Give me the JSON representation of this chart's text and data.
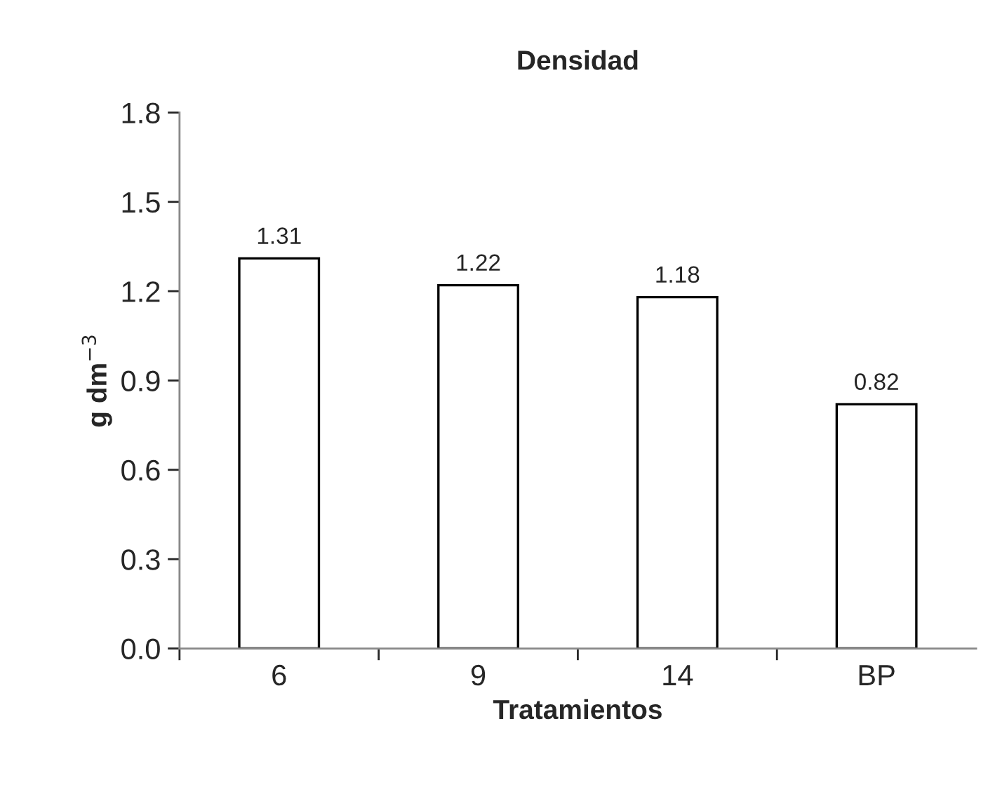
{
  "chart_data": {
    "type": "bar",
    "title": "Densidad",
    "xlabel": "Tratamientos",
    "ylabel": "g dm$^{−3}$",
    "categories": [
      "6",
      "9",
      "14",
      "BP"
    ],
    "values": [
      1.31,
      1.22,
      1.18,
      0.82
    ],
    "color": "#ffffff",
    "ylim": [
      0,
      1.8
    ],
    "yticks": [
      {
        "value": 0,
        "label": "0.0"
      },
      {
        "value": 0.3,
        "label": "0.3"
      },
      {
        "value": 0.6,
        "label": "0.6"
      },
      {
        "value": 0.9,
        "label": "0.9"
      },
      {
        "value": 1.2,
        "label": "1.2"
      },
      {
        "value": 1.5,
        "label": "1.5"
      },
      {
        "value": 1.8,
        "label": "1.8"
      }
    ],
    "data_labels": true,
    "grid": false,
    "legend": false
  }
}
